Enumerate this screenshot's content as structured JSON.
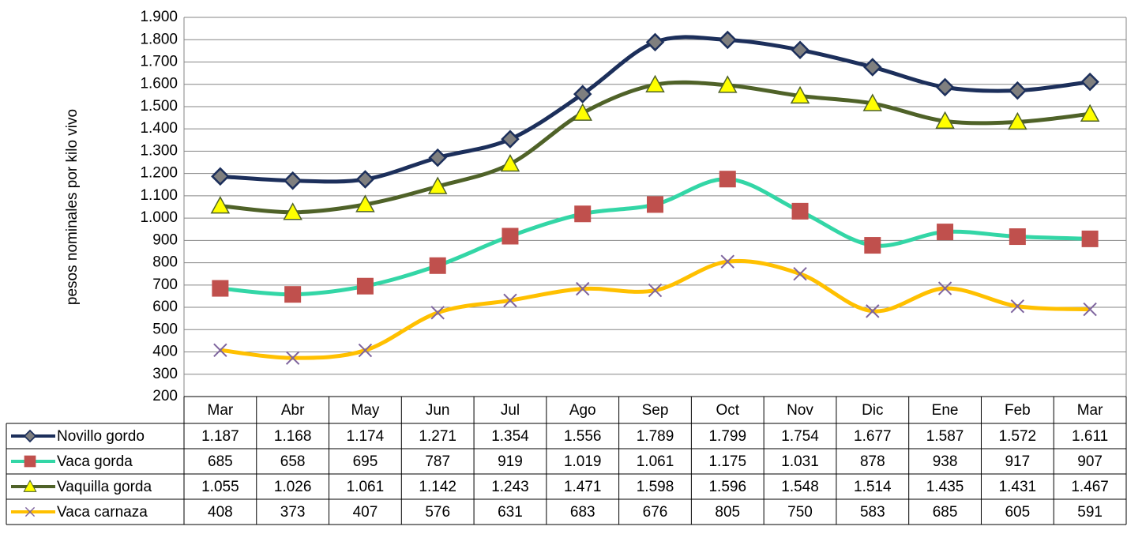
{
  "chart_data": {
    "type": "line",
    "y_label": "pesos nominales por kilo vivo",
    "categories": [
      "Mar",
      "Abr",
      "May",
      "Jun",
      "Jul",
      "Ago",
      "Sep",
      "Oct",
      "Nov",
      "Dic",
      "Ene",
      "Feb",
      "Mar"
    ],
    "ylim": [
      200,
      1900
    ],
    "yticks": [
      {
        "value": 200,
        "label": "200"
      },
      {
        "value": 300,
        "label": "300"
      },
      {
        "value": 400,
        "label": "400"
      },
      {
        "value": 500,
        "label": "500"
      },
      {
        "value": 600,
        "label": "600"
      },
      {
        "value": 700,
        "label": "700"
      },
      {
        "value": 800,
        "label": "800"
      },
      {
        "value": 900,
        "label": "900"
      },
      {
        "value": 1000,
        "label": "1.000"
      },
      {
        "value": 1100,
        "label": "1.100"
      },
      {
        "value": 1200,
        "label": "1.200"
      },
      {
        "value": 1300,
        "label": "1.300"
      },
      {
        "value": 1400,
        "label": "1.400"
      },
      {
        "value": 1500,
        "label": "1.500"
      },
      {
        "value": 1600,
        "label": "1.600"
      },
      {
        "value": 1700,
        "label": "1.700"
      },
      {
        "value": 1800,
        "label": "1.800"
      },
      {
        "value": 1900,
        "label": "1.900"
      }
    ],
    "grid": true,
    "smooth": true,
    "series": [
      {
        "name": "Novillo gordo",
        "color": "#1c2f5b",
        "marker": "diamond",
        "marker_color": "#7f7f7f",
        "values": [
          1187,
          1168,
          1174,
          1271,
          1354,
          1556,
          1789,
          1799,
          1754,
          1677,
          1587,
          1572,
          1611
        ],
        "value_labels": [
          "1.187",
          "1.168",
          "1.174",
          "1.271",
          "1.354",
          "1.556",
          "1.789",
          "1.799",
          "1.754",
          "1.677",
          "1.587",
          "1.572",
          "1.611"
        ]
      },
      {
        "name": "Vaca gorda",
        "color": "#33d6a6",
        "marker": "square",
        "marker_color": "#c0504d",
        "values": [
          685,
          658,
          695,
          787,
          919,
          1019,
          1061,
          1175,
          1031,
          878,
          938,
          917,
          907
        ],
        "value_labels": [
          "685",
          "658",
          "695",
          "787",
          "919",
          "1.019",
          "1.061",
          "1.175",
          "1.031",
          "878",
          "938",
          "917",
          "907"
        ]
      },
      {
        "name": "Vaquilla gorda",
        "color": "#4f6228",
        "marker": "triangle",
        "marker_color": "#ffff00",
        "values": [
          1055,
          1026,
          1061,
          1142,
          1243,
          1471,
          1598,
          1596,
          1548,
          1514,
          1435,
          1431,
          1467
        ],
        "value_labels": [
          "1.055",
          "1.026",
          "1.061",
          "1.142",
          "1.243",
          "1.471",
          "1.598",
          "1.596",
          "1.548",
          "1.514",
          "1.435",
          "1.431",
          "1.467"
        ]
      },
      {
        "name": "Vaca carnaza",
        "color": "#ffc000",
        "marker": "x",
        "marker_color": "#7e649e",
        "values": [
          408,
          373,
          407,
          576,
          631,
          683,
          676,
          805,
          750,
          583,
          685,
          605,
          591
        ],
        "value_labels": [
          "408",
          "373",
          "407",
          "576",
          "631",
          "683",
          "676",
          "805",
          "750",
          "583",
          "685",
          "605",
          "591"
        ]
      }
    ]
  }
}
